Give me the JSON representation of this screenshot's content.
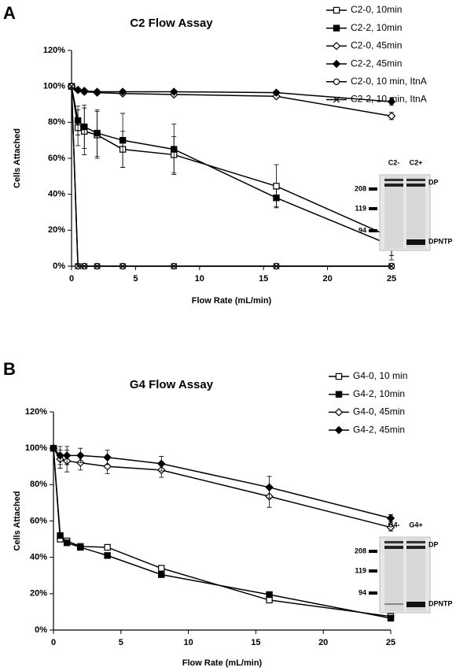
{
  "chart_data": [
    {
      "type": "line",
      "panel": "A",
      "title": "C2 Flow Assay",
      "xlabel": "Flow Rate (mL/min)",
      "ylabel": "Cells Attached",
      "x": [
        0,
        0.5,
        1,
        2,
        4,
        8,
        16,
        25
      ],
      "xlim": [
        0,
        25
      ],
      "xticks": [
        0,
        5,
        10,
        15,
        20,
        25
      ],
      "ylim": [
        0,
        120
      ],
      "yticks": [
        {
          "value": 0,
          "label": "0%"
        },
        {
          "value": 20,
          "label": "20%"
        },
        {
          "value": 40,
          "label": "40%"
        },
        {
          "value": 60,
          "label": "60%"
        },
        {
          "value": 80,
          "label": "80%"
        },
        {
          "value": 100,
          "label": "100%"
        },
        {
          "value": 120,
          "label": "120%"
        }
      ],
      "legend": "right",
      "series": [
        {
          "name": "C2-0, 10min",
          "color": "#000000",
          "marker": "square-open",
          "values": [
            100,
            77,
            75,
            73,
            65,
            62,
            44.5,
            16
          ],
          "errors": [
            null,
            10,
            13,
            13,
            10,
            10,
            12,
            10
          ]
        },
        {
          "name": "C2-2, 10min",
          "color": "#000000",
          "marker": "square-filled",
          "values": [
            100,
            81,
            77.5,
            74,
            70,
            65,
            38,
            11.5
          ],
          "errors": [
            null,
            8,
            12,
            13,
            15,
            14,
            5,
            8
          ]
        },
        {
          "name": "C2-0, 45min",
          "color": "#000000",
          "marker": "diamond-open",
          "values": [
            100,
            98,
            97,
            96.5,
            96,
            95.5,
            94.5,
            83.5
          ],
          "errors": [
            null,
            1,
            1,
            1,
            1,
            1,
            1,
            2
          ]
        },
        {
          "name": "C2-2, 45min",
          "color": "#000000",
          "marker": "diamond-filled",
          "values": [
            100,
            98,
            97.5,
            97,
            97,
            97,
            96.5,
            91.5
          ],
          "errors": [
            null,
            1,
            1,
            1,
            1,
            1,
            1,
            2
          ]
        },
        {
          "name": "C2-0, 10 min, ItnA",
          "color": "#000000",
          "marker": "circle-open",
          "values": [
            100,
            0,
            0,
            0,
            0,
            0,
            0,
            0
          ],
          "errors": [
            null,
            null,
            null,
            null,
            null,
            null,
            null,
            null
          ]
        },
        {
          "name": "C2-2, 10 min, ItnA",
          "color": "#000000",
          "marker": "x",
          "values": [
            100,
            0,
            0,
            0,
            0,
            0,
            0,
            0
          ],
          "errors": [
            null,
            null,
            null,
            null,
            null,
            null,
            null,
            null
          ]
        }
      ],
      "inset": {
        "lanes": [
          "C2-",
          "C2+"
        ],
        "markers": [
          208,
          119,
          94
        ],
        "bands": [
          "DP",
          "DPNTP"
        ]
      }
    },
    {
      "type": "line",
      "panel": "B",
      "title": "G4 Flow Assay",
      "xlabel": "Flow Rate (mL/min)",
      "ylabel": "Cells Attached",
      "x": [
        0,
        0.5,
        1,
        2,
        4,
        8,
        16,
        25
      ],
      "xlim": [
        0,
        25
      ],
      "xticks": [
        0,
        5,
        10,
        15,
        20,
        25
      ],
      "ylim": [
        0,
        120
      ],
      "yticks": [
        {
          "value": 0,
          "label": "0%"
        },
        {
          "value": 20,
          "label": "20%"
        },
        {
          "value": 40,
          "label": "40%"
        },
        {
          "value": 60,
          "label": "60%"
        },
        {
          "value": 80,
          "label": "80%"
        },
        {
          "value": 100,
          "label": "100%"
        },
        {
          "value": 120,
          "label": "120%"
        }
      ],
      "legend": "right",
      "series": [
        {
          "name": "G4-0, 10 min",
          "color": "#000000",
          "marker": "square-open",
          "values": [
            100,
            50,
            49,
            46,
            45.5,
            34,
            16.5,
            7.5
          ],
          "errors": [
            null,
            1,
            1,
            1,
            1,
            1,
            1,
            1
          ]
        },
        {
          "name": "G4-2, 10min",
          "color": "#000000",
          "marker": "square-filled",
          "values": [
            100,
            52,
            48,
            45.5,
            41,
            30.5,
            19.5,
            6.5
          ],
          "errors": [
            null,
            1,
            1,
            1,
            1,
            1,
            1,
            1
          ]
        },
        {
          "name": "G4-0, 45min",
          "color": "#000000",
          "marker": "diamond-open",
          "values": [
            100,
            94,
            93,
            92,
            90,
            88,
            73.5,
            56.5
          ],
          "errors": [
            null,
            5,
            6,
            4,
            4,
            4,
            6,
            2
          ]
        },
        {
          "name": "G4-2, 45min",
          "color": "#000000",
          "marker": "diamond-filled",
          "values": [
            100,
            96,
            96,
            96,
            95,
            91.5,
            78.5,
            61.5
          ],
          "errors": [
            null,
            5,
            5,
            4,
            4,
            4,
            6,
            2
          ]
        }
      ],
      "inset": {
        "lanes": [
          "G4-",
          "G4+"
        ],
        "markers": [
          208,
          119,
          94
        ],
        "bands": [
          "DP",
          "DPNTP"
        ]
      }
    }
  ]
}
